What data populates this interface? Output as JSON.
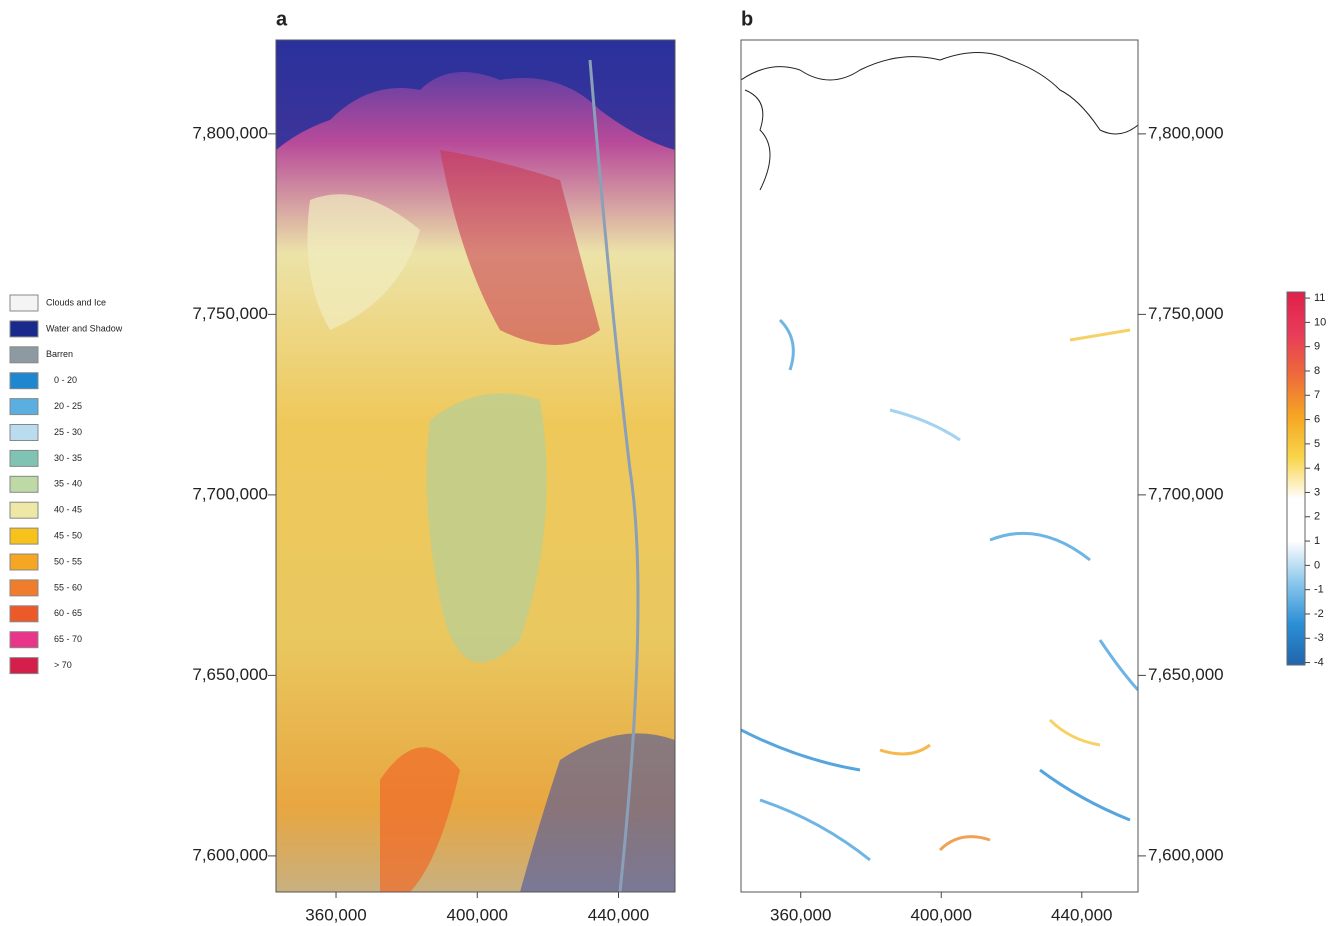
{
  "panels": [
    {
      "label": "a",
      "xlim": [
        343000,
        456000
      ],
      "ylim": [
        7590000,
        7826000
      ],
      "xticks": [
        {
          "value": 360000,
          "label": "360,000"
        },
        {
          "value": 400000,
          "label": "400,000"
        },
        {
          "value": 440000,
          "label": "440,000"
        }
      ],
      "yticks": [
        {
          "value": 7800000,
          "label": "7,800,000"
        },
        {
          "value": 7750000,
          "label": "7,750,000"
        },
        {
          "value": 7700000,
          "label": "7,700,000"
        },
        {
          "value": 7650000,
          "label": "7,650,000"
        },
        {
          "value": 7600000,
          "label": "7,600,000"
        }
      ]
    },
    {
      "label": "b",
      "xlim": [
        343000,
        456000
      ],
      "ylim": [
        7590000,
        7826000
      ],
      "xticks": [
        {
          "value": 360000,
          "label": "360,000"
        },
        {
          "value": 400000,
          "label": "400,000"
        },
        {
          "value": 440000,
          "label": "440,000"
        }
      ],
      "yticks": [
        {
          "value": 7800000,
          "label": "7,800,000"
        },
        {
          "value": 7750000,
          "label": "7,750,000"
        },
        {
          "value": 7700000,
          "label": "7,700,000"
        },
        {
          "value": 7650000,
          "label": "7,650,000"
        },
        {
          "value": 7600000,
          "label": "7,600,000"
        }
      ]
    }
  ],
  "legend": [
    {
      "label": "Clouds and Ice",
      "color": "#f4f4f4"
    },
    {
      "label": "Water and Shadow",
      "color": "#1a2a8c"
    },
    {
      "label": "Barren",
      "color": "#8e9aa2"
    },
    {
      "label": "0 - 20",
      "color": "#1f86d0"
    },
    {
      "label": "20 - 25",
      "color": "#5aaee0"
    },
    {
      "label": "25 - 30",
      "color": "#b9dcef"
    },
    {
      "label": "30 - 35",
      "color": "#7fc3b4"
    },
    {
      "label": "35 - 40",
      "color": "#bcd9a6"
    },
    {
      "label": "40 - 45",
      "color": "#eee7a6"
    },
    {
      "label": "45 - 50",
      "color": "#f7c21c"
    },
    {
      "label": "50 - 55",
      "color": "#f5a623"
    },
    {
      "label": "55 - 60",
      "color": "#f07d2c"
    },
    {
      "label": "60 - 65",
      "color": "#ec5a2a"
    },
    {
      "label": "65 - 70",
      "color": "#e8358a"
    },
    {
      "label": "> 70",
      "color": "#d51f4a"
    }
  ],
  "colorbar": {
    "lim": [
      -4.1,
      11.25
    ],
    "ticks": [
      11,
      10,
      9,
      8,
      7,
      6,
      5,
      4,
      3,
      2,
      1,
      0,
      -1,
      -2,
      -3,
      -4
    ],
    "colors": [
      "#2166ac",
      "#2c8fd6",
      "#8cc8ec",
      "#ffffff",
      "#ffffff",
      "#f9d54a",
      "#f5a623",
      "#ee6a3a",
      "#e83b5a",
      "#e0204a"
    ]
  }
}
